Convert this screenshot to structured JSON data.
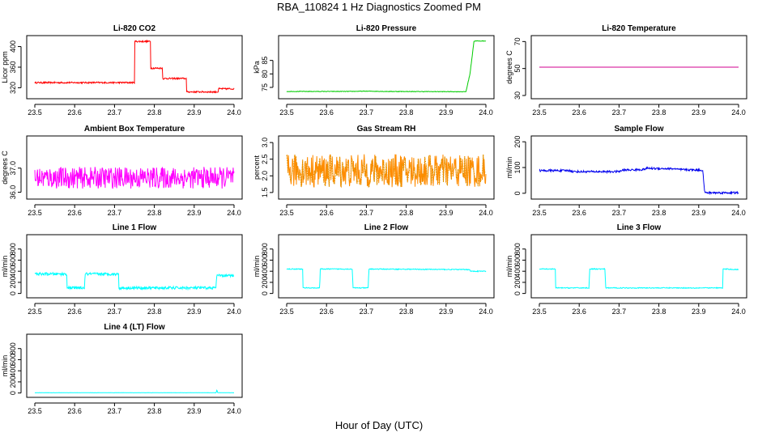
{
  "title": "RBA_110824  1 Hz Diagnostics Zoomed PM",
  "xlabel": "Hour of Day (UTC)",
  "chart_data": [
    {
      "type": "line",
      "title": "Li-820 CO2",
      "ylabel": "Licor ppm",
      "color": "#ff0000",
      "xlim": [
        23.5,
        24.0
      ],
      "ylim": [
        305,
        415
      ],
      "xticks": [
        23.5,
        23.6,
        23.7,
        23.8,
        23.9,
        24.0
      ],
      "yticks": [
        320,
        360,
        400
      ],
      "series": [
        {
          "x": [
            23.5,
            23.75,
            23.751,
            23.79,
            23.791,
            23.82,
            23.821,
            23.88,
            23.881,
            23.96,
            23.961,
            24.0
          ],
          "y": [
            330,
            330,
            410,
            410,
            358,
            358,
            338,
            338,
            312,
            312,
            318,
            318
          ],
          "noise": 1.5
        }
      ]
    },
    {
      "type": "line",
      "title": "Li-820 Pressure",
      "ylabel": "kPa",
      "color": "#00cc00",
      "xlim": [
        23.5,
        24.0
      ],
      "ylim": [
        72,
        93
      ],
      "xticks": [
        23.5,
        23.6,
        23.7,
        23.8,
        23.9,
        24.0
      ],
      "yticks": [
        75,
        80,
        85
      ],
      "series": [
        {
          "x": [
            23.5,
            23.65,
            23.7,
            23.75,
            23.95,
            23.96,
            23.97,
            23.972,
            24.0
          ],
          "y": [
            73.5,
            73.5,
            73.6,
            73.5,
            73.4,
            80,
            92,
            92.2,
            92.2
          ],
          "noise": 0.1
        }
      ]
    },
    {
      "type": "line",
      "title": "Li-820 Temperature",
      "ylabel": "degrees C",
      "color": "#d0008f",
      "xlim": [
        23.5,
        24.0
      ],
      "ylim": [
        30,
        72
      ],
      "xticks": [
        23.5,
        23.6,
        23.7,
        23.8,
        23.9,
        24.0
      ],
      "yticks": [
        30,
        50,
        70
      ],
      "series": [
        {
          "x": [
            23.5,
            24.0
          ],
          "y": [
            51,
            51
          ],
          "noise": 0
        }
      ]
    },
    {
      "type": "line",
      "title": "Ambient Box Temperature",
      "ylabel": "degrees C",
      "color": "#ff00ff",
      "xlim": [
        23.5,
        24.0
      ],
      "ylim": [
        35.85,
        38.2
      ],
      "xticks": [
        23.5,
        23.6,
        23.7,
        23.8,
        23.9,
        24.0
      ],
      "yticks": [
        36.0,
        37.0
      ],
      "series": [
        {
          "x": [
            23.5,
            24.0
          ],
          "y": [
            36.6,
            36.6
          ],
          "noise": 0.45
        }
      ]
    },
    {
      "type": "line",
      "title": "Gas Stream RH",
      "ylabel": "percent",
      "color": "#ff8c00",
      "color2": "#cc9900",
      "xlim": [
        23.5,
        24.0
      ],
      "ylim": [
        1.4,
        3.1
      ],
      "xticks": [
        23.5,
        23.6,
        23.7,
        23.8,
        23.9,
        24.0
      ],
      "yticks": [
        1.5,
        2.0,
        2.5,
        3.0
      ],
      "series": [
        {
          "x": [
            23.5,
            24.0
          ],
          "y": [
            2.15,
            2.15
          ],
          "noise": 0.5
        }
      ]
    },
    {
      "type": "line",
      "title": "Sample Flow",
      "ylabel": "ml/min",
      "color": "#0000ee",
      "xlim": [
        23.5,
        24.0
      ],
      "ylim": [
        -10,
        210
      ],
      "xticks": [
        23.5,
        23.6,
        23.7,
        23.8,
        23.9,
        24.0
      ],
      "yticks": [
        0,
        100,
        200
      ],
      "series": [
        {
          "x": [
            23.5,
            23.58,
            23.581,
            23.7,
            23.71,
            23.76,
            23.77,
            23.84,
            23.85,
            23.91,
            23.915,
            24.0
          ],
          "y": [
            88,
            88,
            84,
            84,
            90,
            92,
            97,
            95,
            92,
            90,
            2,
            2
          ],
          "noise": 4
        }
      ]
    },
    {
      "type": "line",
      "title": "Line 1 Flow",
      "ylabel": "ml/min",
      "color": "#00ffff",
      "xlim": [
        23.5,
        24.0
      ],
      "ylim": [
        -20,
        1000
      ],
      "xticks": [
        23.5,
        23.6,
        23.7,
        23.8,
        23.9,
        24.0
      ],
      "yticks": [
        0,
        200,
        400,
        600,
        800
      ],
      "series": [
        {
          "x": [
            23.5,
            23.58,
            23.581,
            23.625,
            23.626,
            23.71,
            23.711,
            23.955,
            23.956,
            24.0
          ],
          "y": [
            350,
            350,
            100,
            100,
            350,
            350,
            100,
            100,
            320,
            320
          ],
          "noise": 25
        }
      ]
    },
    {
      "type": "line",
      "title": "Line 2 Flow",
      "ylabel": "ml/min",
      "color": "#00ffff",
      "xlim": [
        23.5,
        24.0
      ],
      "ylim": [
        -20,
        1000
      ],
      "xticks": [
        23.5,
        23.6,
        23.7,
        23.8,
        23.9,
        24.0
      ],
      "yticks": [
        0,
        200,
        400,
        600,
        800
      ],
      "series": [
        {
          "x": [
            23.5,
            23.54,
            23.541,
            23.583,
            23.584,
            23.665,
            23.666,
            23.705,
            23.706,
            23.96,
            23.961,
            24.0
          ],
          "y": [
            440,
            440,
            100,
            100,
            440,
            440,
            100,
            100,
            440,
            430,
            400,
            400
          ],
          "noise": 8
        }
      ]
    },
    {
      "type": "line",
      "title": "Line 3 Flow",
      "ylabel": "ml/min",
      "color": "#00ffff",
      "xlim": [
        23.5,
        24.0
      ],
      "ylim": [
        -20,
        1000
      ],
      "xticks": [
        23.5,
        23.6,
        23.7,
        23.8,
        23.9,
        24.0
      ],
      "yticks": [
        0,
        200,
        400,
        600,
        800
      ],
      "series": [
        {
          "x": [
            23.5,
            23.54,
            23.541,
            23.625,
            23.626,
            23.665,
            23.666,
            23.96,
            23.961,
            24.0
          ],
          "y": [
            440,
            440,
            100,
            100,
            440,
            440,
            100,
            100,
            440,
            430
          ],
          "noise": 8
        }
      ]
    },
    {
      "type": "line",
      "title": "Line 4 (LT) Flow",
      "ylabel": "ml/min",
      "color": "#00ffff",
      "xlim": [
        23.5,
        24.0
      ],
      "ylim": [
        -20,
        1000
      ],
      "xticks": [
        23.5,
        23.6,
        23.7,
        23.8,
        23.9,
        24.0
      ],
      "yticks": [
        0,
        200,
        400,
        600,
        800
      ],
      "series": [
        {
          "x": [
            23.5,
            23.955,
            23.957,
            23.959,
            24.0
          ],
          "y": [
            5,
            5,
            60,
            5,
            5
          ],
          "noise": 2
        }
      ]
    }
  ]
}
